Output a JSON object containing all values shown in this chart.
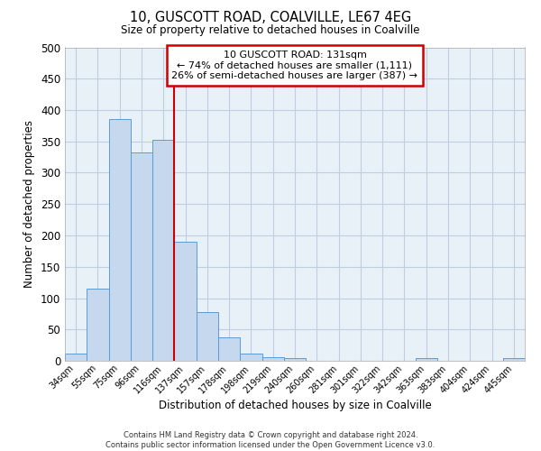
{
  "title": "10, GUSCOTT ROAD, COALVILLE, LE67 4EG",
  "subtitle": "Size of property relative to detached houses in Coalville",
  "xlabel": "Distribution of detached houses by size in Coalville",
  "ylabel": "Number of detached properties",
  "bar_labels": [
    "34sqm",
    "55sqm",
    "75sqm",
    "96sqm",
    "116sqm",
    "137sqm",
    "157sqm",
    "178sqm",
    "198sqm",
    "219sqm",
    "240sqm",
    "260sqm",
    "281sqm",
    "301sqm",
    "322sqm",
    "342sqm",
    "363sqm",
    "383sqm",
    "404sqm",
    "424sqm",
    "445sqm"
  ],
  "bar_values": [
    12,
    115,
    385,
    332,
    353,
    190,
    77,
    38,
    12,
    6,
    4,
    0,
    0,
    0,
    0,
    0,
    4,
    0,
    0,
    0,
    4
  ],
  "bar_color": "#c5d8ed",
  "bar_edge_color": "#5b9bd5",
  "background_color": "#ffffff",
  "plot_bg_color": "#e8f0f8",
  "grid_color": "#c0cfdf",
  "ylim": [
    0,
    500
  ],
  "yticks": [
    0,
    50,
    100,
    150,
    200,
    250,
    300,
    350,
    400,
    450,
    500
  ],
  "property_line_color": "#cc0000",
  "annotation_title": "10 GUSCOTT ROAD: 131sqm",
  "annotation_line1": "← 74% of detached houses are smaller (1,111)",
  "annotation_line2": "26% of semi-detached houses are larger (387) →",
  "annotation_box_color": "#ffffff",
  "annotation_box_edge": "#cc0000",
  "footer1": "Contains HM Land Registry data © Crown copyright and database right 2024.",
  "footer2": "Contains public sector information licensed under the Open Government Licence v3.0."
}
